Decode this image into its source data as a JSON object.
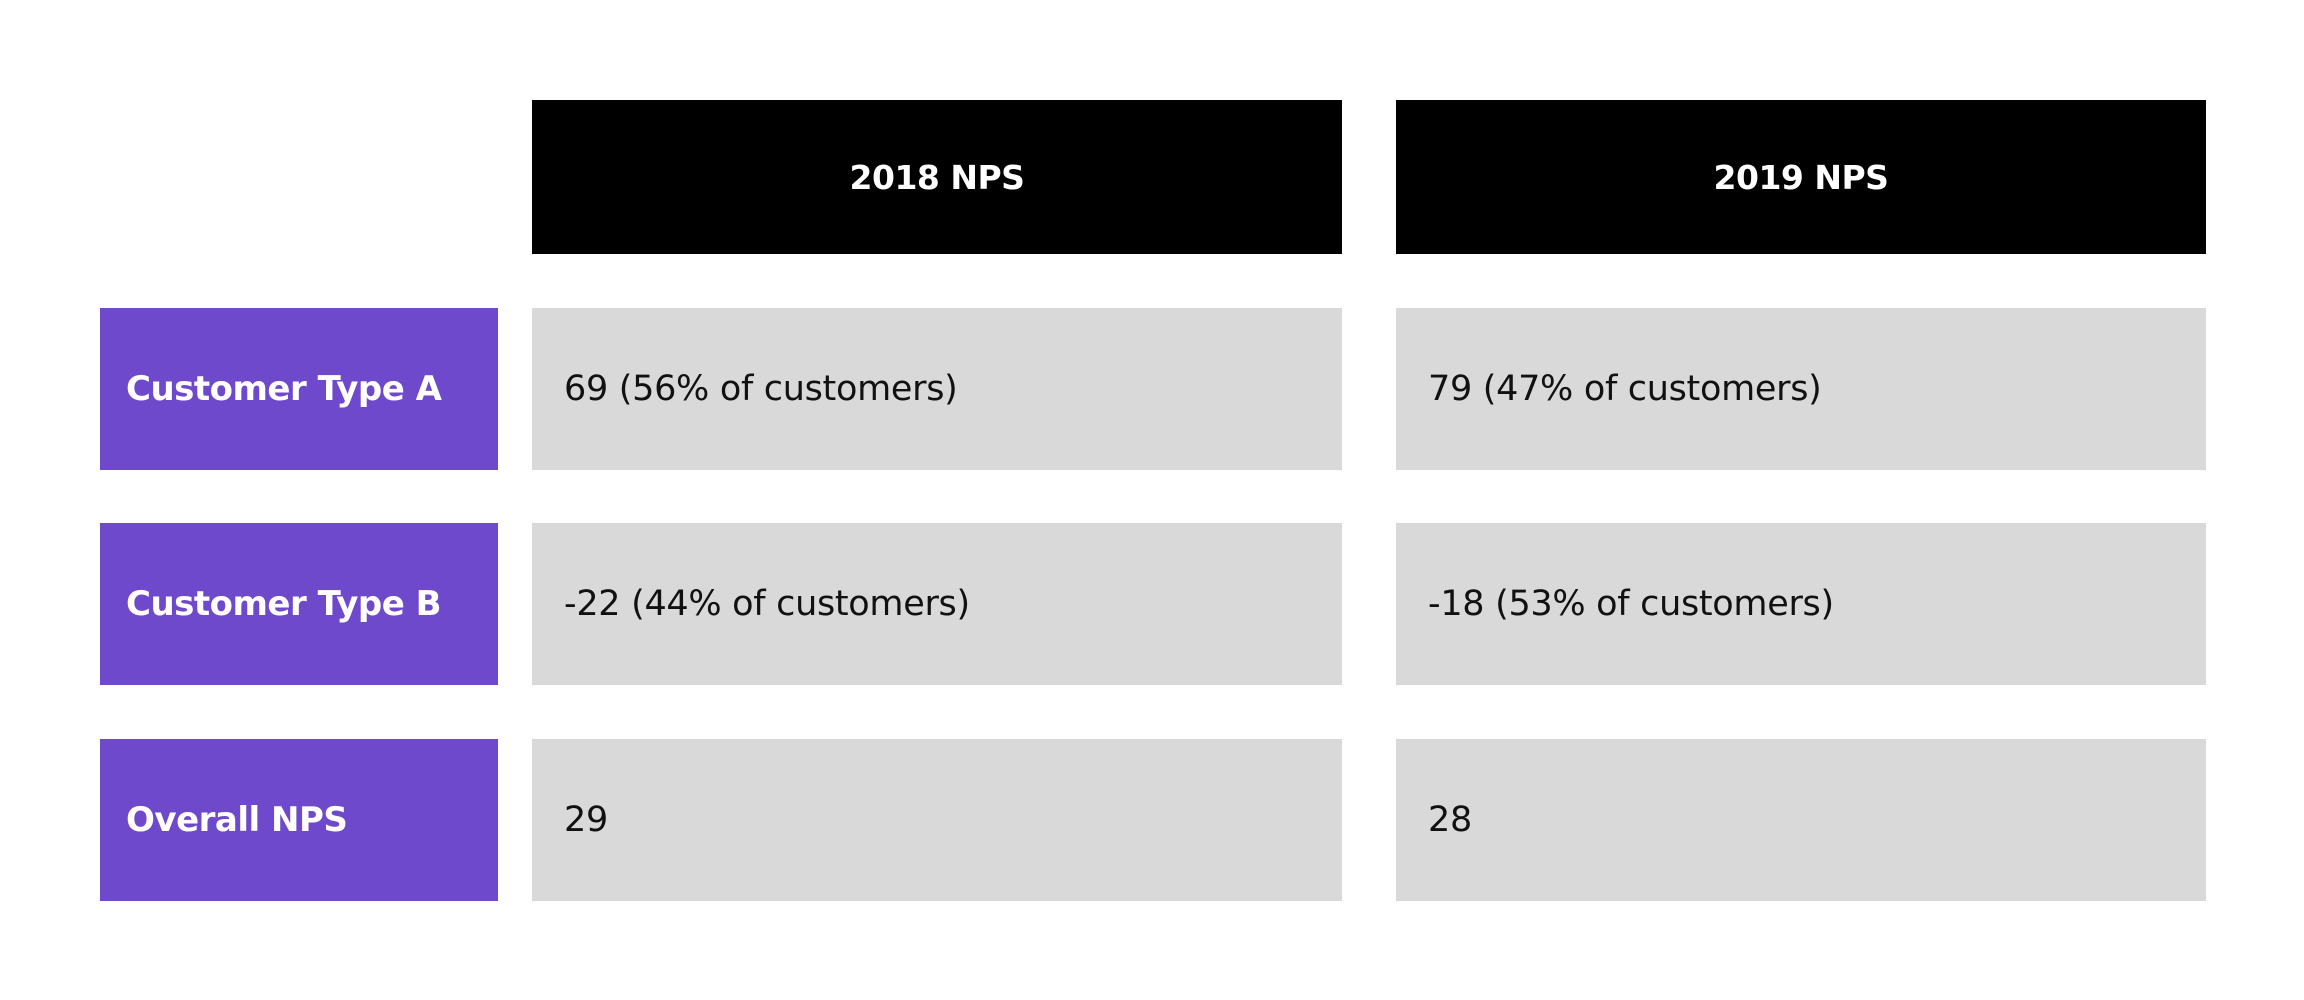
{
  "chart_data": {
    "type": "table",
    "columns": [
      "2018 NPS",
      "2019 NPS"
    ],
    "rows": [
      {
        "label": "Customer Type A",
        "cells": [
          "69 (56% of customers)",
          "79 (47% of customers)"
        ]
      },
      {
        "label": "Customer Type B",
        "cells": [
          "-22 (44% of customers)",
          "-18 (53% of customers)"
        ]
      },
      {
        "label": "Overall NPS",
        "cells": [
          "29",
          "28"
        ]
      }
    ]
  },
  "colors": {
    "header_bg": "#000000",
    "row_label_bg": "#6f49cc",
    "cell_bg": "#d9d9d9"
  }
}
